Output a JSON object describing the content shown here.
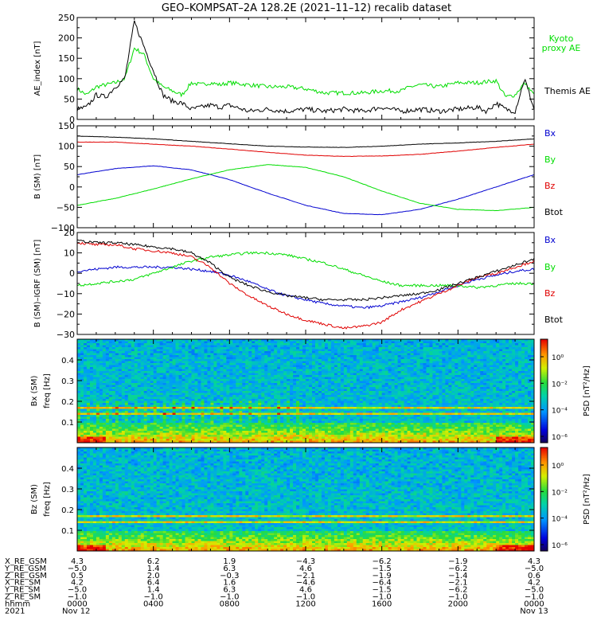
{
  "title": "GEO–KOMPSAT–2A 128.2E (2021–11–12) recalib dataset",
  "colors": {
    "black": "#000000",
    "red": "#e00000",
    "green": "#00dd00",
    "blue": "#0000d0"
  },
  "chart_data": [
    {
      "type": "line",
      "ylabel": "AE_index [nT]",
      "ylim": [
        0,
        250
      ],
      "yticks": [
        0,
        50,
        100,
        150,
        200,
        250
      ],
      "series": [
        {
          "name": "Kyoto proxy AE",
          "color": "#00dd00",
          "x": [
            0,
            0.5,
            1,
            1.5,
            2,
            2.5,
            3,
            3.5,
            4,
            4.5,
            5,
            5.5,
            6,
            6.5,
            7,
            7.5,
            8,
            9,
            10,
            11,
            12,
            13,
            14,
            15,
            16,
            17,
            17.5,
            18,
            19,
            20,
            21,
            22,
            22.5,
            23,
            23.5,
            24
          ],
          "values": [
            75,
            60,
            80,
            85,
            90,
            100,
            175,
            160,
            100,
            80,
            70,
            60,
            90,
            85,
            90,
            85,
            90,
            85,
            80,
            80,
            75,
            65,
            65,
            65,
            70,
            70,
            80,
            85,
            80,
            90,
            90,
            95,
            55,
            60,
            90,
            60
          ]
        },
        {
          "name": "Themis AE",
          "color": "#000000",
          "x": [
            0,
            0.5,
            1,
            1.5,
            2,
            2.5,
            3,
            3.5,
            4,
            4.5,
            5,
            5.5,
            6,
            6.5,
            7,
            7.5,
            8,
            9,
            10,
            11,
            12,
            13,
            14,
            15,
            16,
            17,
            18,
            19,
            20,
            21,
            21.5,
            22,
            22.5,
            23,
            23.5,
            24
          ],
          "values": [
            25,
            30,
            60,
            55,
            80,
            100,
            240,
            180,
            120,
            60,
            45,
            40,
            25,
            30,
            35,
            30,
            35,
            20,
            25,
            20,
            25,
            20,
            25,
            20,
            30,
            20,
            25,
            20,
            25,
            30,
            20,
            40,
            25,
            20,
            100,
            25
          ]
        }
      ]
    },
    {
      "type": "line",
      "ylabel": "B (SM) [nT]",
      "ylim": [
        -100,
        150
      ],
      "yticks": [
        -100,
        -50,
        0,
        50,
        100,
        150
      ],
      "x": [
        0,
        2,
        4,
        6,
        8,
        10,
        12,
        14,
        16,
        18,
        20,
        22,
        24
      ],
      "series": [
        {
          "name": "Bx",
          "color": "#0000d0",
          "values": [
            30,
            45,
            52,
            42,
            18,
            -15,
            -45,
            -65,
            -68,
            -55,
            -30,
            0,
            30
          ]
        },
        {
          "name": "By",
          "color": "#00dd00",
          "values": [
            -45,
            -28,
            -5,
            20,
            42,
            55,
            48,
            25,
            -10,
            -40,
            -55,
            -58,
            -50
          ]
        },
        {
          "name": "Bz",
          "color": "#e00000",
          "values": [
            110,
            110,
            105,
            100,
            93,
            85,
            78,
            75,
            76,
            80,
            88,
            97,
            105
          ]
        },
        {
          "name": "Btot",
          "color": "#000000",
          "values": [
            125,
            122,
            118,
            112,
            106,
            100,
            98,
            97,
            100,
            105,
            108,
            112,
            118
          ]
        }
      ]
    },
    {
      "type": "line",
      "ylabel": "B (SM)–IGRF (SM) [nT]",
      "ylim": [
        -30,
        20
      ],
      "yticks": [
        -30,
        -20,
        -10,
        0,
        10,
        20
      ],
      "x": [
        0,
        1,
        2,
        3,
        4,
        5,
        6,
        7,
        8,
        9,
        10,
        11,
        12,
        13,
        14,
        15,
        16,
        17,
        18,
        19,
        20,
        21,
        22,
        23,
        24
      ],
      "series": [
        {
          "name": "Bx",
          "color": "#0000d0",
          "values": [
            1,
            2,
            3,
            3,
            3,
            3,
            2,
            1,
            -1,
            -4,
            -8,
            -11,
            -13,
            -15,
            -16,
            -17,
            -16,
            -14,
            -12,
            -9,
            -6,
            -3,
            -1,
            1,
            2
          ]
        },
        {
          "name": "By",
          "color": "#00dd00",
          "values": [
            -6,
            -5,
            -4,
            -3,
            0,
            3,
            6,
            8,
            9,
            10,
            10,
            9,
            7,
            5,
            2,
            -1,
            -4,
            -6,
            -6,
            -6,
            -6,
            -7,
            -6,
            -5,
            -5
          ]
        },
        {
          "name": "Bz",
          "color": "#e00000",
          "values": [
            15,
            14,
            14,
            12,
            11,
            10,
            8,
            3,
            -5,
            -11,
            -16,
            -20,
            -23,
            -25,
            -27,
            -26,
            -24,
            -18,
            -14,
            -10,
            -6,
            -2,
            0,
            3,
            6
          ]
        },
        {
          "name": "Btot",
          "color": "#000000",
          "values": [
            16,
            15,
            15,
            14,
            13,
            12,
            10,
            5,
            -2,
            -6,
            -9,
            -11,
            -12,
            -13,
            -13,
            -13,
            -12,
            -11,
            -10,
            -8,
            -5,
            -2,
            1,
            4,
            7
          ]
        }
      ]
    },
    {
      "type": "heatmap",
      "ylabel": "Bx (SM) freq [Hz]",
      "yticks": [
        0.1,
        0.2,
        0.3,
        0.4
      ],
      "ylim": [
        0,
        0.5
      ],
      "colorbar": {
        "label": "PSD [nT²/Hz]",
        "ticks": [
          "10⁰",
          "10⁻²",
          "10⁻⁴",
          "10⁻⁶"
        ]
      }
    },
    {
      "type": "heatmap",
      "ylabel": "Bz (SM) freq [Hz]",
      "yticks": [
        0.1,
        0.2,
        0.3,
        0.4
      ],
      "ylim": [
        0,
        0.5
      ],
      "colorbar": {
        "label": "PSD [nT²/Hz]",
        "ticks": [
          "10⁰",
          "10⁻²",
          "10⁻⁴",
          "10⁻⁶"
        ]
      }
    }
  ],
  "legends": {
    "panel1": [
      "Kyoto proxy AE",
      "Themis AE"
    ],
    "panel2": [
      "Bx",
      "By",
      "Bz",
      "Btot"
    ],
    "panel3": [
      "Bx",
      "By",
      "Bz",
      "Btot"
    ]
  },
  "ephemeris": {
    "labels": [
      "X_RE_GSM",
      "Y_RE_GSM",
      "Z_RE_GSM",
      "X_RE_SM",
      "Y_RE_SM",
      "Z_RE_SM",
      "hhmm",
      "2021"
    ],
    "columns": [
      [
        "4.3",
        "−5.0",
        "0.5",
        "4.2",
        "−5.0",
        "−1.0",
        "0000",
        "Nov 12"
      ],
      [
        "6.2",
        "1.4",
        "2.0",
        "6.4",
        "1.4",
        "−1.0",
        "0400",
        ""
      ],
      [
        "1.9",
        "6.3",
        "−0.3",
        "1.6",
        "6.3",
        "−1.0",
        "0800",
        ""
      ],
      [
        "−4.3",
        "4.6",
        "−2.1",
        "−4.6",
        "4.6",
        "−1.0",
        "1200",
        ""
      ],
      [
        "−6.2",
        "−1.5",
        "−1.9",
        "−6.4",
        "−1.5",
        "−1.0",
        "1600",
        ""
      ],
      [
        "−1.9",
        "−6.2",
        "−1.4",
        "−2.1",
        "−6.2",
        "−1.0",
        "2000",
        ""
      ],
      [
        "4.3",
        "−5.0",
        "0.6",
        "4.2",
        "−5.0",
        "−1.0",
        "0000",
        "Nov 13"
      ]
    ]
  }
}
